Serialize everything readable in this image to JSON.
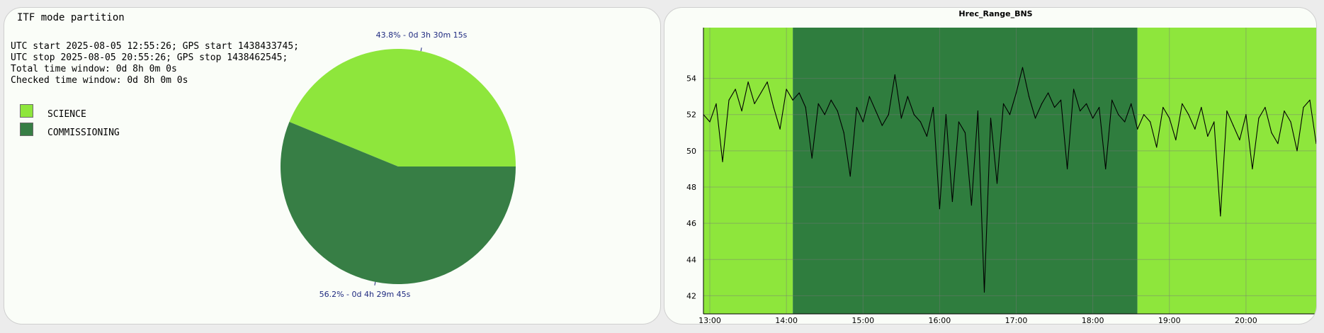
{
  "left_panel": {
    "title": "ITF mode partition",
    "info_lines": [
      "UTC start 2025-08-05 12:55:26; GPS start 1438433745;",
      "UTC stop 2025-08-05 20:55:26; GPS stop 1438462545;",
      "Total time window: 0d 8h 0m 0s",
      "Checked time window: 0d 8h 0m 0s"
    ],
    "legend": [
      {
        "label": "SCIENCE",
        "color": "#8ee63c"
      },
      {
        "label": "COMMISSIONING",
        "color": "#377e45"
      }
    ]
  },
  "chart_data": [
    {
      "type": "pie",
      "title": "ITF mode partition",
      "slices": [
        {
          "name": "SCIENCE",
          "value": 43.8,
          "label": "43.8% - 0d 3h 30m 15s",
          "color": "#8ee63c"
        },
        {
          "name": "COMMISSIONING",
          "value": 56.2,
          "label": "56.2% - 0d 4h 29m 45s",
          "color": "#377e45"
        }
      ]
    },
    {
      "type": "line",
      "title": "Hrec_Range_BNS",
      "xlabel": "",
      "ylabel": "",
      "xlim": [
        "12:55",
        "20:55"
      ],
      "ylim": [
        41,
        56.8
      ],
      "x_ticks": [
        "13:00",
        "14:00",
        "15:00",
        "16:00",
        "17:00",
        "18:00",
        "19:00",
        "20:00"
      ],
      "y_ticks": [
        42,
        44,
        46,
        48,
        50,
        52,
        54
      ],
      "grid": true,
      "background_segments": [
        {
          "mode": "SCIENCE",
          "start": "12:55",
          "end": "14:05",
          "color": "#8ee63c"
        },
        {
          "mode": "COMMISSIONING",
          "start": "14:05",
          "end": "18:35",
          "color": "#2f7d3e"
        },
        {
          "mode": "SCIENCE",
          "start": "18:35",
          "end": "20:55",
          "color": "#8ee63c"
        }
      ],
      "line_color": "#000000",
      "series": [
        {
          "x": [
            "12:55",
            "13:00",
            "13:05",
            "13:10",
            "13:15",
            "13:20",
            "13:25",
            "13:30",
            "13:35",
            "13:40",
            "13:45",
            "13:50",
            "13:55",
            "14:00",
            "14:05",
            "14:10",
            "14:15",
            "14:20",
            "14:25",
            "14:30",
            "14:35",
            "14:40",
            "14:45",
            "14:50",
            "14:55",
            "15:00",
            "15:05",
            "15:10",
            "15:15",
            "15:20",
            "15:25",
            "15:30",
            "15:35",
            "15:40",
            "15:45",
            "15:50",
            "15:55",
            "16:00",
            "16:05",
            "16:10",
            "16:15",
            "16:20",
            "16:25",
            "16:30",
            "16:35",
            "16:40",
            "16:45",
            "16:50",
            "16:55",
            "17:00",
            "17:05",
            "17:10",
            "17:15",
            "17:20",
            "17:25",
            "17:30",
            "17:35",
            "17:40",
            "17:45",
            "17:50",
            "17:55",
            "18:00",
            "18:05",
            "18:10",
            "18:15",
            "18:20",
            "18:25",
            "18:30",
            "18:35",
            "18:40",
            "18:45",
            "18:50",
            "18:55",
            "19:00",
            "19:05",
            "19:10",
            "19:15",
            "19:20",
            "19:25",
            "19:30",
            "19:35",
            "19:40",
            "19:45",
            "19:50",
            "19:55",
            "20:00",
            "20:05",
            "20:10",
            "20:15",
            "20:20",
            "20:25",
            "20:30",
            "20:35",
            "20:40",
            "20:45",
            "20:50",
            "20:55"
          ],
          "y": [
            52.0,
            51.6,
            52.6,
            49.4,
            52.8,
            53.4,
            52.2,
            53.8,
            52.6,
            53.2,
            53.8,
            52.4,
            51.2,
            53.4,
            52.8,
            53.2,
            52.4,
            49.6,
            52.6,
            52.0,
            52.8,
            52.2,
            51.0,
            48.6,
            52.4,
            51.6,
            53.0,
            52.2,
            51.4,
            52.0,
            54.2,
            51.8,
            53.0,
            52.0,
            51.6,
            50.8,
            52.4,
            46.8,
            52.0,
            47.2,
            51.6,
            51.0,
            47.0,
            52.2,
            42.2,
            51.8,
            48.2,
            52.6,
            52.0,
            53.2,
            54.6,
            53.0,
            51.8,
            52.6,
            53.2,
            52.4,
            52.8,
            49.0,
            53.4,
            52.2,
            52.6,
            51.8,
            52.4,
            49.0,
            52.8,
            52.0,
            51.6,
            52.6,
            51.2,
            52.0,
            51.6,
            50.2,
            52.4,
            51.8,
            50.6,
            52.6,
            52.0,
            51.2,
            52.4,
            50.8,
            51.6,
            46.4,
            52.2,
            51.4,
            50.6,
            52.0,
            49.0,
            51.8,
            52.4,
            51.0,
            50.4,
            52.2,
            51.6,
            50.0,
            52.4,
            52.8,
            50.4
          ]
        }
      ]
    }
  ]
}
